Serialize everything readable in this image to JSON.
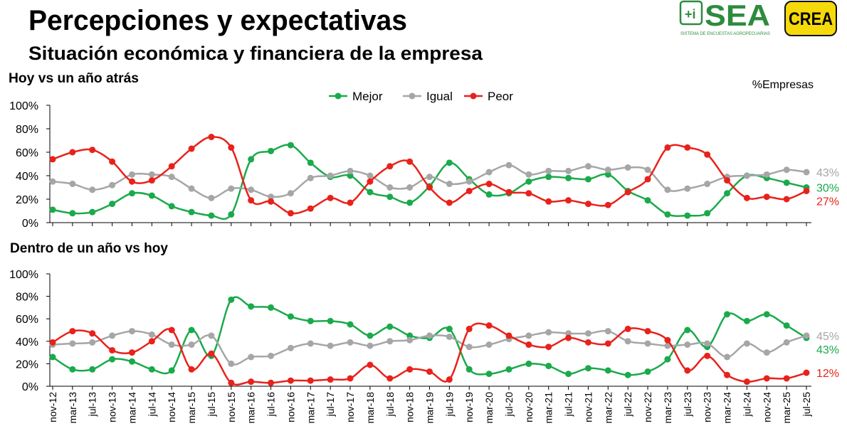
{
  "title": "Percepciones y expectativas",
  "subtitle": "Situación económica y financiera de la empresa",
  "unit_label": "%Empresas",
  "logo_sea": "SEA",
  "logo_sea_caption": "SISTEMA DE ENCUESTAS AGROPECUARIAS",
  "logo_crea": "CREA",
  "chart_data": [
    {
      "type": "line",
      "title": "Hoy vs un año atrás",
      "legend": true,
      "smooth": true,
      "ylim": [
        0,
        100
      ],
      "yticks": [
        {
          "value": 0,
          "label": "0%"
        },
        {
          "value": 20,
          "label": "20%"
        },
        {
          "value": 40,
          "label": "40%"
        },
        {
          "value": 60,
          "label": "60%"
        },
        {
          "value": 80,
          "label": "80%"
        },
        {
          "value": 100,
          "label": "100%"
        }
      ],
      "series": [
        {
          "name": "Mejor",
          "color": "#1aaa4b",
          "end_label": "30%",
          "values": [
            11,
            8,
            9,
            16,
            25,
            23,
            14,
            9,
            6,
            7,
            54,
            61,
            66,
            51,
            39,
            40,
            26,
            22,
            17,
            31,
            51,
            37,
            24,
            25,
            35,
            39,
            38,
            37,
            41,
            27,
            19,
            7,
            6,
            8,
            25,
            40,
            38,
            34,
            30
          ]
        },
        {
          "name": "Igual",
          "color": "#a6a6a6",
          "end_label": "43%",
          "values": [
            35,
            33,
            28,
            32,
            41,
            41,
            39,
            29,
            21,
            29,
            28,
            22,
            25,
            38,
            40,
            44,
            40,
            30,
            30,
            39,
            33,
            35,
            43,
            49,
            41,
            44,
            44,
            48,
            45,
            47,
            45,
            28,
            29,
            33,
            39,
            40,
            41,
            45,
            43
          ]
        },
        {
          "name": "Peor",
          "color": "#e8221b",
          "end_label": "27%",
          "values": [
            54,
            60,
            62,
            52,
            35,
            36,
            48,
            63,
            73,
            64,
            19,
            18,
            8,
            12,
            21,
            17,
            35,
            48,
            52,
            30,
            17,
            27,
            33,
            26,
            25,
            18,
            19,
            16,
            15,
            26,
            37,
            64,
            64,
            58,
            36,
            21,
            22,
            20,
            27
          ]
        }
      ]
    },
    {
      "type": "line",
      "title": "Dentro de un año vs hoy",
      "legend": false,
      "smooth": true,
      "categories": [
        "nov-12",
        "mar-13",
        "jul-13",
        "nov-13",
        "mar-14",
        "jul-14",
        "nov-14",
        "mar-15",
        "jul-15",
        "nov-15",
        "mar-16",
        "jul-16",
        "nov-16",
        "mar-17",
        "jul-17",
        "nov-17",
        "mar-18",
        "jul-18",
        "nov-18",
        "mar-19",
        "jul-19",
        "nov-19",
        "mar-20",
        "jul-20",
        "nov-20",
        "mar-21",
        "jul-21",
        "nov-21",
        "mar-22",
        "jul-22",
        "nov-22",
        "mar-23",
        "jul-23",
        "nov-23",
        "mar-24",
        "jul-24",
        "nov-24",
        "mar-25",
        "jul-25"
      ],
      "ylim": [
        0,
        100
      ],
      "yticks": [
        {
          "value": 0,
          "label": "0%"
        },
        {
          "value": 20,
          "label": "20%"
        },
        {
          "value": 40,
          "label": "40%"
        },
        {
          "value": 60,
          "label": "60%"
        },
        {
          "value": 80,
          "label": "80%"
        },
        {
          "value": 100,
          "label": "100%"
        }
      ],
      "series": [
        {
          "name": "Mejor",
          "color": "#1aaa4b",
          "end_label": "43%",
          "values": [
            26,
            15,
            15,
            24,
            22,
            15,
            14,
            50,
            27,
            77,
            71,
            70,
            62,
            58,
            58,
            55,
            45,
            53,
            45,
            43,
            51,
            15,
            11,
            15,
            20,
            18,
            11,
            16,
            14,
            10,
            13,
            24,
            50,
            35,
            64,
            58,
            64,
            54,
            43
          ]
        },
        {
          "name": "Igual",
          "color": "#a6a6a6",
          "end_label": "45%",
          "values": [
            37,
            38,
            39,
            45,
            49,
            46,
            37,
            37,
            45,
            20,
            26,
            27,
            34,
            38,
            36,
            39,
            36,
            40,
            41,
            45,
            44,
            35,
            37,
            42,
            45,
            48,
            47,
            47,
            49,
            40,
            38,
            36,
            37,
            38,
            26,
            38,
            30,
            39,
            45
          ]
        },
        {
          "name": "Peor",
          "color": "#e8221b",
          "end_label": "12%",
          "values": [
            39,
            49,
            47,
            32,
            30,
            40,
            50,
            15,
            29,
            3,
            4,
            3,
            5,
            5,
            6,
            7,
            19,
            7,
            15,
            13,
            6,
            51,
            54,
            45,
            37,
            35,
            43,
            39,
            38,
            51,
            49,
            41,
            14,
            27,
            10,
            4,
            7,
            7,
            12
          ]
        }
      ]
    }
  ]
}
